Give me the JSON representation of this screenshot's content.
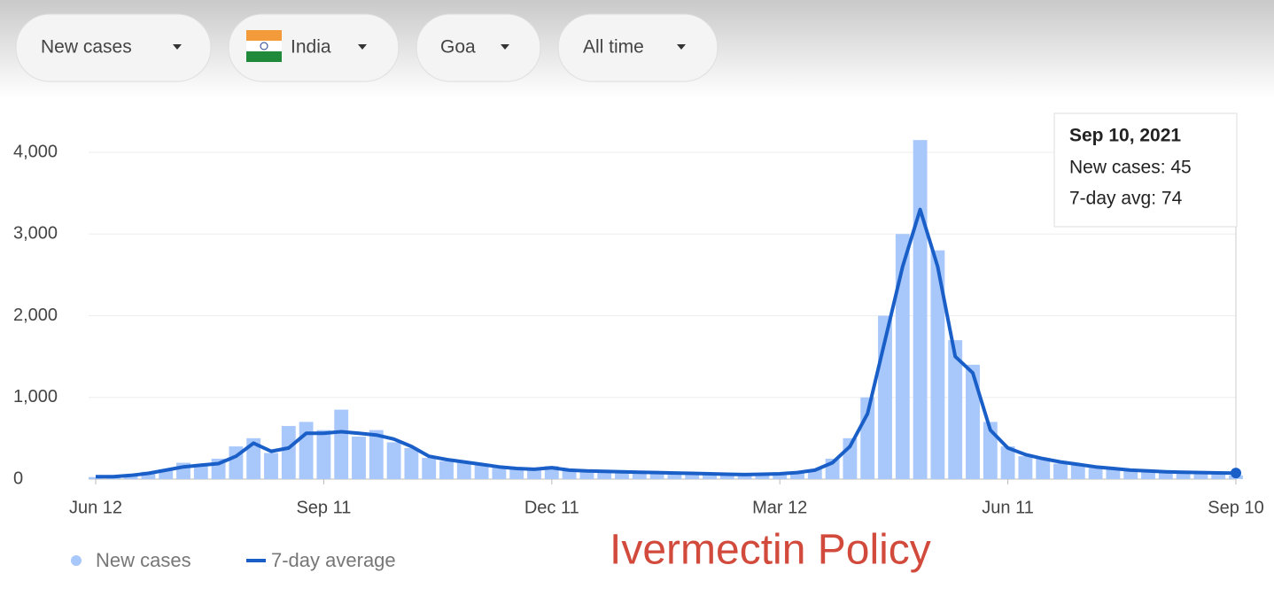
{
  "controls": [
    "New cases",
    "India",
    "Goa",
    "All time"
  ],
  "chart_data": {
    "type": "combo",
    "annotation": "Ivermectin Policy",
    "tooltip": {
      "date": "Sep 10, 2021",
      "lines": [
        "New cases: 45",
        "7-day avg: 74"
      ]
    },
    "x": [
      0,
      7,
      14,
      21,
      28,
      35,
      42,
      49,
      56,
      63,
      70,
      77,
      84,
      91,
      98,
      105,
      112,
      119,
      126,
      133,
      140,
      147,
      154,
      161,
      168,
      175,
      182,
      189,
      196,
      203,
      210,
      217,
      224,
      231,
      238,
      245,
      252,
      259,
      266,
      273,
      280,
      287,
      294,
      301,
      308,
      315,
      322,
      329,
      336,
      343,
      350,
      357,
      364,
      371,
      378,
      385,
      392,
      399,
      406,
      413,
      420,
      427,
      434,
      441,
      448,
      455
    ],
    "series": [
      {
        "name": "New cases",
        "kind": "bar",
        "color": "#a8c7fa",
        "values": [
          25,
          40,
          60,
          90,
          120,
          200,
          180,
          250,
          400,
          500,
          320,
          650,
          700,
          600,
          850,
          520,
          600,
          450,
          380,
          260,
          220,
          200,
          170,
          160,
          120,
          110,
          160,
          100,
          90,
          100,
          80,
          90,
          70,
          80,
          65,
          70,
          55,
          60,
          50,
          70,
          90,
          120,
          250,
          500,
          1000,
          2000,
          3000,
          4150,
          2800,
          1700,
          1400,
          700,
          400,
          280,
          260,
          190,
          170,
          140,
          120,
          100,
          110,
          80,
          90,
          70,
          80,
          45
        ]
      },
      {
        "name": "7-day average",
        "kind": "line",
        "color": "#1a5fc8",
        "values": [
          30,
          30,
          45,
          70,
          110,
          150,
          170,
          190,
          280,
          440,
          340,
          380,
          560,
          560,
          580,
          560,
          540,
          490,
          400,
          280,
          240,
          210,
          180,
          150,
          130,
          120,
          140,
          110,
          100,
          95,
          90,
          85,
          80,
          75,
          70,
          65,
          60,
          55,
          60,
          65,
          80,
          110,
          200,
          400,
          800,
          1700,
          2600,
          3300,
          2600,
          1500,
          1300,
          600,
          380,
          300,
          250,
          210,
          180,
          150,
          130,
          110,
          100,
          90,
          85,
          80,
          76,
          74
        ]
      }
    ],
    "xlim": [
      0,
      455
    ],
    "xticks": [
      {
        "value": 0,
        "label": "Jun 12"
      },
      {
        "value": 91,
        "label": "Sep 11"
      },
      {
        "value": 182,
        "label": "Dec 11"
      },
      {
        "value": 273,
        "label": "Mar 12"
      },
      {
        "value": 364,
        "label": "Jun 11"
      },
      {
        "value": 455,
        "label": "Sep 10"
      }
    ],
    "ylim": [
      0,
      4000
    ],
    "yticks": [
      0,
      {
        "value": 1000,
        "label": "1,000"
      },
      {
        "value": 2000,
        "label": "2,000"
      },
      {
        "value": 3000,
        "label": "3,000"
      },
      {
        "value": 4000,
        "label": "4,000"
      }
    ],
    "grid": true
  }
}
